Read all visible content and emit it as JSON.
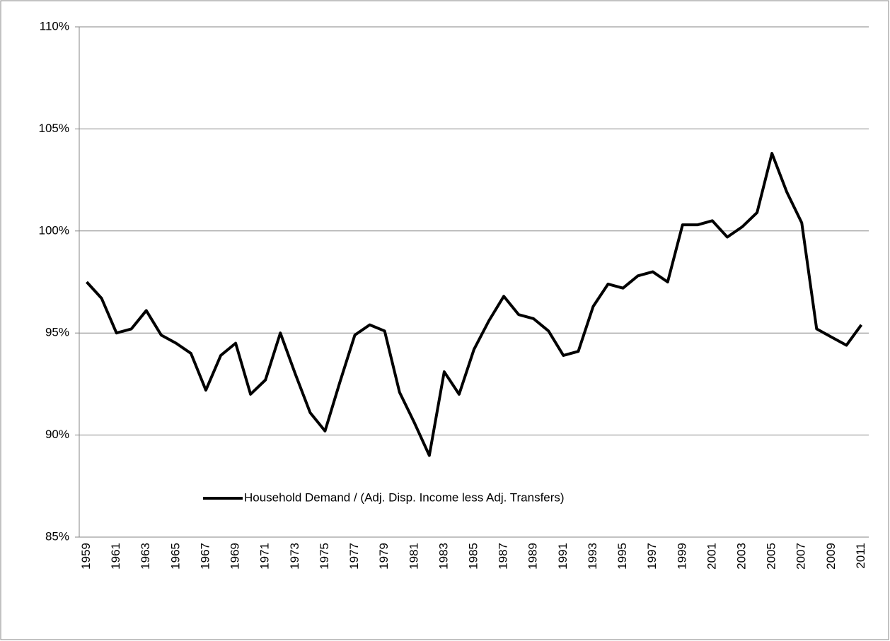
{
  "chart_data": {
    "type": "line",
    "categories": [
      "1959",
      null,
      "1961",
      null,
      "1963",
      null,
      "1965",
      null,
      "1967",
      null,
      "1969",
      null,
      "1971",
      null,
      "1973",
      null,
      "1975",
      null,
      "1977",
      null,
      "1979",
      null,
      "1981",
      null,
      "1983",
      null,
      "1985",
      null,
      "1987",
      null,
      "1989",
      null,
      "1991",
      null,
      "1993",
      null,
      "1995",
      null,
      "1997",
      null,
      "1999",
      null,
      "2001",
      null,
      "2003",
      null,
      "2005",
      null,
      "2007",
      null,
      "2009",
      null,
      "2011"
    ],
    "series": [
      {
        "name": "Household Demand / (Adj. Disp. Income less Adj. Transfers)",
        "color": "#000000",
        "values": [
          97.5,
          96.7,
          95.0,
          95.2,
          96.1,
          94.9,
          94.5,
          94.0,
          92.2,
          93.9,
          94.5,
          92.0,
          92.7,
          95.0,
          93.0,
          91.1,
          90.2,
          92.6,
          94.9,
          95.4,
          95.1,
          92.1,
          90.6,
          89.0,
          93.1,
          92.0,
          94.2,
          95.6,
          96.8,
          95.9,
          95.7,
          95.1,
          93.9,
          94.1,
          96.3,
          97.4,
          97.2,
          97.8,
          98.0,
          97.5,
          100.3,
          100.3,
          100.5,
          99.7,
          100.2,
          100.9,
          103.8,
          101.9,
          100.4,
          95.2,
          94.8,
          94.4,
          95.4
        ]
      }
    ],
    "ylim": [
      85,
      110
    ],
    "yticks": [
      {
        "value": 85,
        "label": "85%"
      },
      {
        "value": 90,
        "label": "90%"
      },
      {
        "value": 95,
        "label": "95%"
      },
      {
        "value": 100,
        "label": "100%"
      },
      {
        "value": 105,
        "label": "105%"
      },
      {
        "value": 110,
        "label": "110%"
      }
    ],
    "grid": true,
    "legend": "bottom"
  }
}
